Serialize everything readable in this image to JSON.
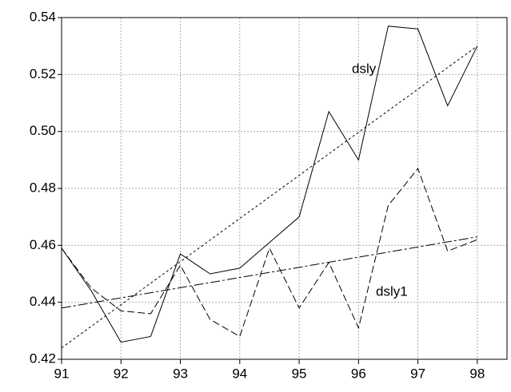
{
  "chart_data": {
    "type": "line",
    "x": [
      91,
      91.5,
      92,
      92.5,
      93,
      93.5,
      94,
      94.5,
      95,
      95.5,
      96,
      96.5,
      97,
      97.5,
      98
    ],
    "series": [
      {
        "name": "dsly",
        "color": "#000000",
        "style": "solid",
        "values": [
          0.459,
          0.444,
          0.426,
          0.428,
          0.457,
          0.45,
          0.452,
          0.461,
          0.47,
          0.507,
          0.49,
          0.537,
          0.536,
          0.509,
          0.53
        ]
      },
      {
        "name": "dsly1",
        "color": "#000000",
        "style": "dashed",
        "values": [
          0.459,
          0.445,
          0.437,
          0.436,
          0.453,
          0.434,
          0.428,
          0.459,
          0.438,
          0.454,
          0.431,
          0.474,
          0.487,
          0.458,
          0.462
        ]
      },
      {
        "color": "#000000",
        "style": "dotted",
        "x": [
          91,
          98
        ],
        "values": [
          0.424,
          0.53
        ]
      },
      {
        "color": "#000000",
        "style": "dashdot",
        "x": [
          91,
          98
        ],
        "values": [
          0.438,
          0.463
        ]
      }
    ],
    "xlim": [
      91,
      98.5
    ],
    "xticks": [
      91,
      92,
      93,
      94,
      95,
      96,
      97,
      98
    ],
    "ylim": [
      0.42,
      0.54
    ],
    "yticks": [
      0.42,
      0.44,
      0.46,
      0.48,
      {
        "value": 0.5,
        "label": "0.50"
      },
      0.52,
      0.54
    ],
    "grid": true
  }
}
